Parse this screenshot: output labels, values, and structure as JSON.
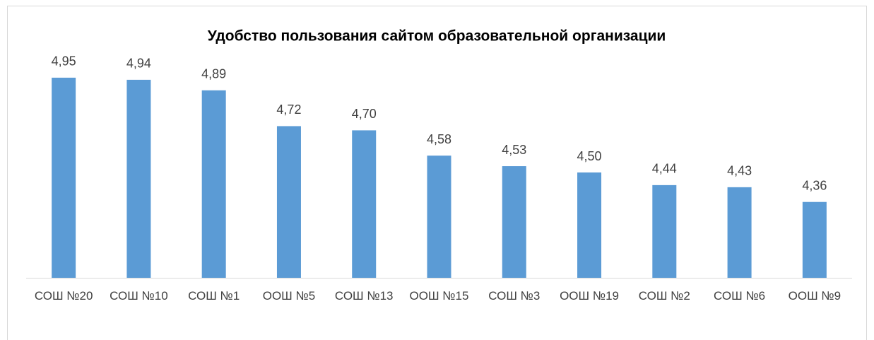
{
  "chart_data": {
    "type": "bar",
    "title": "Удобство пользования сайтом образовательной организации",
    "categories": [
      "СОШ №20",
      "СОШ №10",
      "СОШ №1",
      "ООШ №5",
      "СОШ №13",
      "ООШ №15",
      "СОШ №3",
      "ООШ №19",
      "СОШ №2",
      "СОШ №6",
      "ООШ №9"
    ],
    "values": [
      4.95,
      4.94,
      4.89,
      4.72,
      4.7,
      4.58,
      4.53,
      4.5,
      4.44,
      4.43,
      4.36
    ],
    "value_labels": [
      "4,95",
      "4,94",
      "4,89",
      "4,72",
      "4,70",
      "4,58",
      "4,53",
      "4,50",
      "4,44",
      "4,43",
      "4,36"
    ],
    "color": "#5b9bd5",
    "ylim": [
      4,
      5
    ]
  }
}
